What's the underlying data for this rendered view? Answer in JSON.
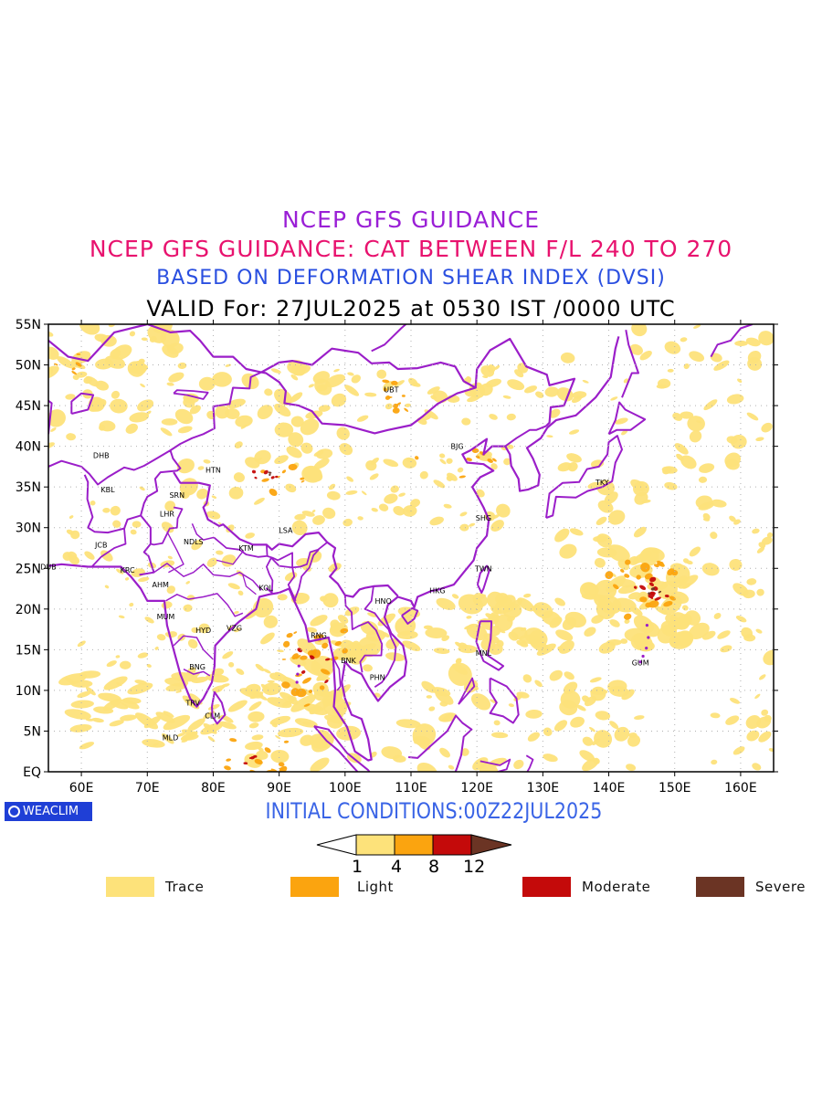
{
  "titles": {
    "line1": "NCEP GFS GUIDANCE",
    "line2": "NCEP GFS GUIDANCE: CAT BETWEEN F/L 240 TO 270",
    "line3": "BASED ON DEFORMATION SHEAR INDEX (DVSI)",
    "line4": "VALID For: 27JUL2025 at 0530 IST /0000 UTC"
  },
  "map": {
    "lat_ticks": [
      "55N",
      "50N",
      "45N",
      "40N",
      "35N",
      "30N",
      "25N",
      "20N",
      "15N",
      "10N",
      "5N",
      "EQ"
    ],
    "lon_ticks": [
      "60E",
      "70E",
      "80E",
      "90E",
      "100E",
      "110E",
      "120E",
      "130E",
      "140E",
      "150E",
      "160E"
    ],
    "stations": [
      {
        "code": "UBT",
        "lon": 107,
        "lat": 47.0
      },
      {
        "code": "BJG",
        "lon": 117,
        "lat": 40.0
      },
      {
        "code": "DHB",
        "lon": 63,
        "lat": 38.9
      },
      {
        "code": "HTN",
        "lon": 80,
        "lat": 37.1
      },
      {
        "code": "KBL",
        "lon": 64,
        "lat": 34.7
      },
      {
        "code": "SRN",
        "lon": 74.5,
        "lat": 34.0
      },
      {
        "code": "LHR",
        "lon": 73,
        "lat": 31.7
      },
      {
        "code": "TKY",
        "lon": 139,
        "lat": 35.6
      },
      {
        "code": "SHG",
        "lon": 121,
        "lat": 31.2
      },
      {
        "code": "LSA",
        "lon": 91,
        "lat": 29.7
      },
      {
        "code": "JCB",
        "lon": 63,
        "lat": 27.9
      },
      {
        "code": "NDLS",
        "lon": 77,
        "lat": 28.3
      },
      {
        "code": "KTM",
        "lon": 85,
        "lat": 27.5
      },
      {
        "code": "DUB",
        "lon": 55,
        "lat": 25.2
      },
      {
        "code": "TWN",
        "lon": 121,
        "lat": 25.0
      },
      {
        "code": "KRC",
        "lon": 67,
        "lat": 24.8
      },
      {
        "code": "AHM",
        "lon": 72,
        "lat": 23.0
      },
      {
        "code": "KOL",
        "lon": 88,
        "lat": 22.6
      },
      {
        "code": "HKG",
        "lon": 114,
        "lat": 22.3
      },
      {
        "code": "HNO",
        "lon": 105.8,
        "lat": 21.0
      },
      {
        "code": "MUM",
        "lon": 72.8,
        "lat": 19.1
      },
      {
        "code": "HYD",
        "lon": 78.5,
        "lat": 17.4
      },
      {
        "code": "VZG",
        "lon": 83.2,
        "lat": 17.7
      },
      {
        "code": "RNG",
        "lon": 96,
        "lat": 16.8
      },
      {
        "code": "MNL",
        "lon": 121,
        "lat": 14.6
      },
      {
        "code": "BNK",
        "lon": 100.5,
        "lat": 13.7
      },
      {
        "code": "GUM",
        "lon": 144.8,
        "lat": 13.4
      },
      {
        "code": "BNG",
        "lon": 77.6,
        "lat": 12.9
      },
      {
        "code": "PHN",
        "lon": 104.9,
        "lat": 11.6
      },
      {
        "code": "TRV",
        "lon": 76.9,
        "lat": 8.5
      },
      {
        "code": "CLM",
        "lon": 79.9,
        "lat": 6.9
      },
      {
        "code": "MLD",
        "lon": 73.5,
        "lat": 4.2
      }
    ]
  },
  "initial_conditions": "INITIAL CONDITIONS:00Z22JUL2025",
  "brand": "WEACLIM",
  "colorbar": {
    "thresholds": [
      "1",
      "4",
      "8",
      "12"
    ],
    "colors": [
      "#ffffff",
      "#fde27a",
      "#fba40f",
      "#c40a0a",
      "#6b3424"
    ]
  },
  "legend": [
    {
      "label": "Trace",
      "color": "#fde27a"
    },
    {
      "label": "Light",
      "color": "#fba40f"
    },
    {
      "label": "Moderate",
      "color": "#c40a0a"
    },
    {
      "label": "Severe",
      "color": "#6b3424"
    }
  ],
  "colors": {
    "coastline": "#9b1ec9",
    "grid": "#b0b0b0"
  }
}
